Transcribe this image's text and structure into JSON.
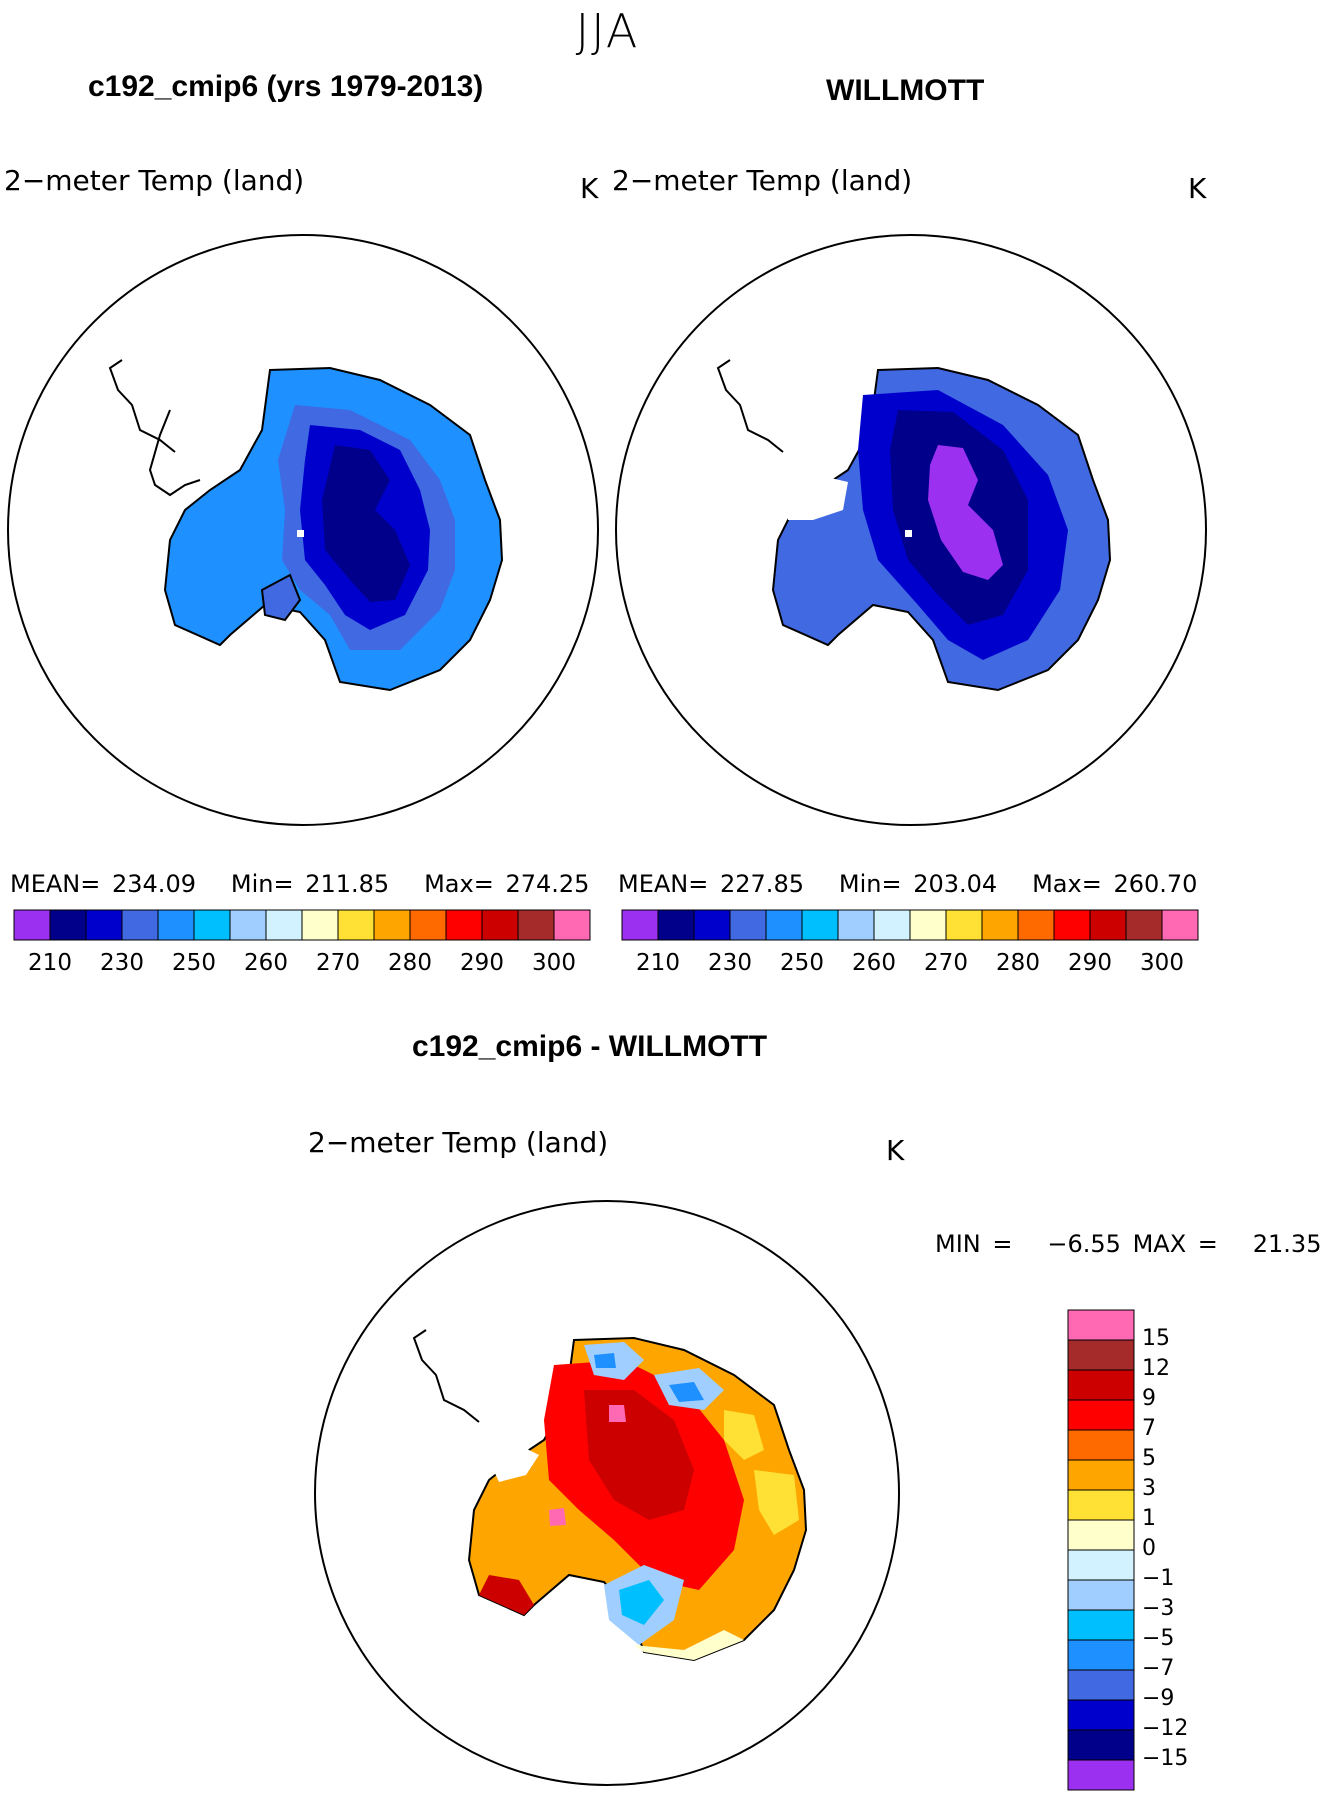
{
  "season": "JJA",
  "panels": [
    {
      "title": "c192_cmip6 (yrs 1979-2013)",
      "variable": "2−meter Temp (land)",
      "units": "K",
      "stats": {
        "mean_label": "MEAN=",
        "mean": "234.09",
        "min_label": "Min=",
        "min": "211.85",
        "max_label": "Max=",
        "max": "274.25"
      }
    },
    {
      "title": "WILLMOTT",
      "variable": "2−meter Temp (land)",
      "units": "K",
      "stats": {
        "mean_label": "MEAN=",
        "mean": "227.85",
        "min_label": "Min=",
        "min": "203.04",
        "max_label": "Max=",
        "max": "260.70"
      }
    }
  ],
  "abs_colorbar": {
    "colors": [
      "#9b30f0",
      "#00008b",
      "#0000cd",
      "#4169e1",
      "#1e90ff",
      "#00bfff",
      "#a0cfff",
      "#d2f2ff",
      "#ffffcc",
      "#ffe135",
      "#ffa500",
      "#ff6a00",
      "#ff0000",
      "#cd0000",
      "#a52a2a",
      "#ff69b4"
    ],
    "tick_labels": [
      "210",
      "230",
      "250",
      "260",
      "270",
      "280",
      "290",
      "300"
    ]
  },
  "diff_panel": {
    "title": "c192_cmip6 - WILLMOTT",
    "variable": "2−meter Temp (land)",
    "units": "K",
    "stats": {
      "min_label": "MIN =",
      "min": "−6.55",
      "max_label": "MAX =",
      "max": "21.35"
    }
  },
  "diff_colorbar": {
    "colors": [
      "#9b30f0",
      "#00008b",
      "#0000cd",
      "#4169e1",
      "#1e90ff",
      "#00bfff",
      "#a0cfff",
      "#d2f2ff",
      "#ffffcc",
      "#ffe135",
      "#ffa500",
      "#ff6a00",
      "#ff0000",
      "#cd0000",
      "#a52a2a",
      "#ff69b4"
    ],
    "tick_labels": [
      "−15",
      "−12",
      "−9",
      "−7",
      "−5",
      "−3",
      "−1",
      "0",
      "1",
      "3",
      "5",
      "7",
      "9",
      "12",
      "15"
    ]
  }
}
